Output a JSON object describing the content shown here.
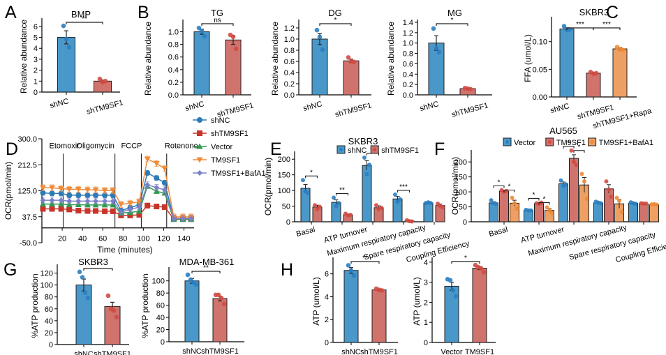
{
  "colors": {
    "blue": "#4a98c9",
    "red": "#d0736d",
    "orange": "#eea064",
    "green": "#3a9a5c",
    "purple": "#7b7fc8",
    "lineBlue": "#2c7bb6",
    "lineRed": "#c8342a",
    "lineOrange": "#ef8c3a",
    "lineGreen": "#2e9a4f",
    "linePurple": "#7c80c9",
    "dotBlue": "#2b7fc1",
    "dotRed": "#d14b43",
    "dotOrange": "#f08a35"
  },
  "panel_labels": [
    "A",
    "B",
    "C",
    "D",
    "E",
    "F",
    "G",
    "H"
  ],
  "chart_data": [
    {
      "id": "A",
      "type": "bar",
      "title": "BMP",
      "ylabel": "Relative abundance",
      "xlabel": "",
      "ylim": [
        0,
        6.5
      ],
      "yticks": [
        0,
        1,
        2,
        3,
        4,
        5,
        6
      ],
      "categories": [
        "shNC",
        "shTM9SF1"
      ],
      "values": [
        5.0,
        1.0
      ],
      "errors": [
        0.6,
        0.1
      ],
      "points": [
        [
          6.05,
          4.85,
          4.1
        ],
        [
          1.2,
          0.9,
          1.0
        ]
      ],
      "bar_colors": [
        "blue",
        "red"
      ],
      "significance": [
        {
          "from": 0,
          "to": 1,
          "label": "**"
        }
      ],
      "rotated_labels": true
    },
    {
      "id": "B-TG",
      "type": "bar",
      "title": "TG",
      "ylabel": "Relative abundance",
      "xlabel": "",
      "ylim": [
        0,
        1.15
      ],
      "yticks": [
        0.0,
        0.2,
        0.4,
        0.6,
        0.8,
        1.0
      ],
      "categories": [
        "shNC",
        "shTM9SF1"
      ],
      "values": [
        1.0,
        0.87
      ],
      "errors": [
        0.04,
        0.07
      ],
      "points": [
        [
          1.06,
          1.01,
          0.93
        ],
        [
          0.95,
          0.92,
          0.73
        ]
      ],
      "bar_colors": [
        "blue",
        "red"
      ],
      "significance": [
        {
          "from": 0,
          "to": 1,
          "label": "ns"
        }
      ],
      "rotated_labels": true
    },
    {
      "id": "B-DG",
      "type": "bar",
      "title": "DG",
      "ylabel": "Relative abundance",
      "xlabel": "",
      "ylim": [
        0,
        1.3
      ],
      "yticks": [
        0.0,
        0.2,
        0.4,
        0.6,
        0.8,
        1.0,
        1.2
      ],
      "categories": [
        "shNC",
        "shTM9SF1"
      ],
      "values": [
        1.0,
        0.61
      ],
      "errors": [
        0.1,
        0.03
      ],
      "points": [
        [
          1.16,
          1.04,
          0.81
        ],
        [
          0.67,
          0.6,
          0.59
        ]
      ],
      "bar_colors": [
        "blue",
        "red"
      ],
      "significance": [
        {
          "from": 0,
          "to": 1,
          "label": "*"
        }
      ],
      "rotated_labels": true
    },
    {
      "id": "B-MG",
      "type": "bar",
      "title": "MG",
      "ylabel": "Relative abundance",
      "xlabel": "",
      "ylim": [
        0,
        1.4
      ],
      "yticks": [
        0.0,
        0.2,
        0.4,
        0.6,
        0.8,
        1.0,
        1.2,
        1.4
      ],
      "categories": [
        "shNC",
        "shTM9SF1"
      ],
      "values": [
        1.0,
        0.12
      ],
      "errors": [
        0.14,
        0.01
      ],
      "points": [
        [
          1.28,
          0.9,
          0.82
        ],
        [
          0.13,
          0.12,
          0.11
        ]
      ],
      "bar_colors": [
        "blue",
        "red"
      ],
      "significance": [
        {
          "from": 0,
          "to": 1,
          "label": "*"
        }
      ],
      "rotated_labels": true
    },
    {
      "id": "C",
      "type": "bar",
      "title": "SKBR3",
      "ylabel": "FFA (umol/L)",
      "xlabel": "",
      "ylim": [
        0,
        0.14
      ],
      "yticks": [
        0.0,
        0.05,
        0.1
      ],
      "ytick_labels": [
        "0.00",
        "0.05",
        "0.10"
      ],
      "categories": [
        "shNC",
        "shTM9SF1",
        "shTM9SF1+Rapa"
      ],
      "values": [
        0.123,
        0.043,
        0.087
      ],
      "errors": [
        0.002,
        0.001,
        0.002
      ],
      "points": [
        [
          0.128,
          0.121,
          0.122
        ],
        [
          0.045,
          0.042,
          0.043
        ],
        [
          0.09,
          0.086,
          0.085
        ]
      ],
      "bar_colors": [
        "blue",
        "red",
        "orange"
      ],
      "significance": [
        {
          "from": 0,
          "to": 1,
          "label": "***"
        },
        {
          "from": 1,
          "to": 2,
          "label": "***"
        }
      ],
      "rotated_labels": true
    },
    {
      "id": "D",
      "type": "line",
      "title": "",
      "ylabel": "OCR(pmol/min)",
      "xlabel": "Time (minutes)",
      "ylim": [
        -50,
        300
      ],
      "yticks": [
        -50,
        37.5,
        125,
        212.5,
        300
      ],
      "ytick_labels": [
        "-50.0",
        "37.5",
        "125.0",
        "212.5",
        "300.0"
      ],
      "xlim": [
        0,
        150
      ],
      "xticks": [
        20,
        40,
        60,
        80,
        100,
        120,
        140
      ],
      "injections": [
        {
          "x": 21,
          "label": "Etomoxir"
        },
        {
          "x": 72,
          "label": "Oligomycin"
        },
        {
          "x": 98,
          "label": "FCCP"
        },
        {
          "x": 123,
          "label": "Rotenone"
        }
      ],
      "x": [
        1,
        10,
        19,
        27,
        36,
        45,
        53,
        62,
        70,
        78,
        87,
        96,
        104,
        113,
        121,
        130,
        139,
        147
      ],
      "series": [
        {
          "name": "shNC",
          "marker": "circle",
          "color": "lineBlue",
          "values": [
            118,
            116,
            116,
            110,
            110,
            110,
            110,
            110,
            110,
            58,
            68,
            78,
            185,
            168,
            152,
            32,
            32,
            32
          ],
          "err": 8
        },
        {
          "name": "shTM9SF1",
          "marker": "square",
          "color": "lineRed",
          "values": [
            64,
            64,
            64,
            62,
            58,
            57,
            57,
            56,
            56,
            42,
            42,
            44,
            75,
            72,
            70,
            30,
            30,
            30
          ],
          "err": 8
        },
        {
          "name": "Vector",
          "marker": "triangle-up",
          "color": "lineGreen",
          "values": [
            80,
            80,
            80,
            78,
            78,
            77,
            77,
            77,
            77,
            50,
            52,
            56,
            140,
            123,
            117,
            28,
            28,
            28
          ],
          "err": 6
        },
        {
          "name": "TM9SF1",
          "marker": "triangle-down",
          "color": "lineOrange",
          "values": [
            135,
            135,
            132,
            130,
            130,
            128,
            128,
            126,
            126,
            79,
            83,
            88,
            232,
            217,
            200,
            37,
            37,
            37
          ],
          "err": 10
        },
        {
          "name": "TM9SF1+BafA1",
          "marker": "diamond",
          "color": "linePurple",
          "values": [
            93,
            93,
            93,
            90,
            90,
            90,
            90,
            90,
            90,
            53,
            62,
            70,
            145,
            136,
            128,
            31,
            31,
            31
          ],
          "err": 10
        }
      ]
    },
    {
      "id": "E",
      "type": "bar",
      "title": "SKBR3",
      "ylabel": "OCR(pmol/min)",
      "xlabel": "",
      "ylim": [
        0,
        225
      ],
      "yticks": [
        0,
        50,
        100,
        150,
        200
      ],
      "categories": [
        "Basal",
        "ATP turnover",
        "Maximum respiratory capacity",
        "Spare respiratory capacity",
        "Coupling Efficiency"
      ],
      "series": [
        {
          "name": "shNC",
          "color": "blue",
          "values": [
            107,
            62,
            180,
            73,
            60
          ],
          "errors": [
            12,
            8,
            15,
            8,
            2
          ],
          "points": [
            [
              133,
              97,
              92
            ],
            [
              77,
              50,
              60
            ],
            [
              205,
              152,
              182
            ],
            [
              87,
              64,
              72
            ],
            [
              60,
              62,
              60
            ]
          ]
        },
        {
          "name": "shTM9SF1",
          "color": "red",
          "values": [
            47,
            22,
            45,
            3,
            52
          ],
          "errors": [
            6,
            3,
            6,
            1,
            5
          ],
          "points": [
            [
              53,
              40,
              48
            ],
            [
              26,
              20,
              22
            ],
            [
              53,
              40,
              45
            ],
            [
              5,
              2,
              1
            ],
            [
              58,
              50,
              46
            ]
          ]
        }
      ],
      "significance": [
        {
          "group": 0,
          "label": "*"
        },
        {
          "group": 1,
          "label": "**"
        },
        {
          "group": 2,
          "label": "**"
        },
        {
          "group": 3,
          "label": "***"
        }
      ],
      "legend": "top-center"
    },
    {
      "id": "F",
      "type": "bar",
      "title": "AU565",
      "ylabel": "OCR(pmol/min)",
      "xlabel": "",
      "ylim": [
        0,
        240
      ],
      "yticks": [
        0,
        50,
        100,
        150,
        200
      ],
      "categories": [
        "Basal",
        "ATP turnover",
        "Maximum respiratory capacity",
        "Spare respiratory capacity",
        "Coupling Efficiency"
      ],
      "series": [
        {
          "name": "Vector",
          "color": "blue",
          "values": [
            63,
            38,
            127,
            63,
            62
          ],
          "errors": [
            4,
            2,
            6,
            2,
            2
          ],
          "points": [
            [
              72,
              62,
              60
            ],
            [
              40,
              38,
              38
            ],
            [
              138,
              120,
              125
            ],
            [
              67,
              64,
              62
            ],
            [
              65,
              62,
              60
            ]
          ]
        },
        {
          "name": "TM9SF1",
          "color": "red",
          "values": [
            102,
            61,
            212,
            110,
            60
          ],
          "errors": [
            3,
            3,
            12,
            14,
            2
          ],
          "points": [
            [
              106,
              100,
              103
            ],
            [
              62,
              60,
              64
            ],
            [
              238,
              200,
              190
            ],
            [
              135,
              108,
              84
            ],
            [
              62,
              61,
              61
            ]
          ]
        },
        {
          "name": "TM9SF1+BafA1",
          "color": "orange",
          "values": [
            62,
            38,
            123,
            60,
            57
          ],
          "errors": [
            10,
            6,
            25,
            15,
            2
          ],
          "points": [
            [
              80,
              62,
              44
            ],
            [
              48,
              38,
              30
            ],
            [
              160,
              135,
              77
            ],
            [
              80,
              70,
              33
            ],
            [
              58,
              59,
              57
            ]
          ]
        }
      ],
      "significance": [
        {
          "group": 0,
          "from": 0,
          "to": 1,
          "label": "*"
        },
        {
          "group": 0,
          "from": 1,
          "to": 2,
          "label": "*"
        },
        {
          "group": 1,
          "from": 0,
          "to": 1,
          "label": "*"
        },
        {
          "group": 1,
          "from": 1,
          "to": 2,
          "label": "*"
        },
        {
          "group": 2,
          "from": 0,
          "to": 1,
          "label": "*"
        },
        {
          "group": 2,
          "from": 1,
          "to": 2,
          "label": "*"
        }
      ],
      "legend": "top-center"
    },
    {
      "id": "G-SKBR3",
      "type": "bar",
      "title": "SKBR3",
      "ylabel": "%ATP production",
      "xlabel": "",
      "ylim": [
        0,
        130
      ],
      "yticks": [
        0,
        20,
        40,
        60,
        80,
        100,
        120
      ],
      "categories": [
        "shNC",
        "shTM9SF1"
      ],
      "values": [
        100,
        64
      ],
      "errors": [
        10,
        7
      ],
      "points": [
        [
          122,
          113,
          87,
          78
        ],
        [
          82,
          60,
          57,
          46
        ]
      ],
      "bar_colors": [
        "blue",
        "red"
      ],
      "significance": [
        {
          "from": 0,
          "to": 1,
          "label": "*"
        }
      ],
      "rotated_labels": false
    },
    {
      "id": "G-MDA",
      "type": "bar",
      "title": "MDA-MB-361",
      "ylabel": "%ATP production",
      "xlabel": "",
      "ylim": [
        0,
        118
      ],
      "yticks": [
        0,
        20,
        40,
        60,
        80,
        100
      ],
      "categories": [
        "shNC",
        "shTM9SF1"
      ],
      "values": [
        100,
        71
      ],
      "errors": [
        4,
        4
      ],
      "points": [
        [
          110,
          102,
          98,
          94
        ],
        [
          77,
          77,
          72,
          62
        ]
      ],
      "bar_colors": [
        "blue",
        "red"
      ],
      "significance": [
        {
          "from": 0,
          "to": 1,
          "label": "**"
        }
      ],
      "rotated_labels": false
    },
    {
      "id": "H-1",
      "type": "bar",
      "title": "",
      "ylabel": "ATP (umol/L)",
      "xlabel": "",
      "ylim": [
        0,
        7.2
      ],
      "yticks": [
        0,
        2,
        4,
        6
      ],
      "categories": [
        "shNC",
        "shTM9SF1"
      ],
      "values": [
        6.3,
        4.6
      ],
      "errors": [
        0.25,
        0.05
      ],
      "points": [
        [
          6.75,
          6.3,
          5.85
        ],
        [
          4.7,
          4.6,
          4.55
        ]
      ],
      "bar_colors": [
        "blue",
        "red"
      ],
      "significance": [
        {
          "from": 0,
          "to": 1,
          "label": "**"
        }
      ],
      "rotated_labels": false
    },
    {
      "id": "H-2",
      "type": "bar",
      "title": "",
      "ylabel": "ATP (umol/L)",
      "xlabel": "",
      "ylim": [
        0,
        4.1
      ],
      "yticks": [
        0,
        1,
        2,
        3,
        4
      ],
      "categories": [
        "Vector",
        "TM9SF1"
      ],
      "values": [
        2.8,
        3.7
      ],
      "errors": [
        0.2,
        0.07
      ],
      "points": [
        [
          3.15,
          3.1,
          2.6,
          2.3
        ],
        [
          3.85,
          3.75,
          3.7,
          3.5
        ]
      ],
      "bar_colors": [
        "blue",
        "red"
      ],
      "significance": [
        {
          "from": 0,
          "to": 1,
          "label": "*"
        }
      ],
      "rotated_labels": false
    }
  ]
}
